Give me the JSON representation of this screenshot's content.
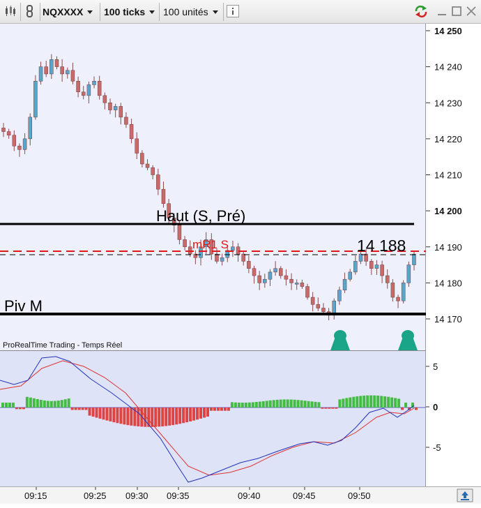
{
  "toolbar": {
    "symbol": "NQXXXX",
    "ticks": "100 ticks",
    "units": "100 unités"
  },
  "chart_data": [
    {
      "type": "candlestick",
      "price_axis_ticks": [
        "14 250",
        "14 240",
        "14 230",
        "14 220",
        "14 210",
        "14 200",
        "14 190",
        "14 180",
        "14 170"
      ],
      "time_axis_ticks": [
        "09:15",
        "09:25",
        "09:30",
        "09:35",
        "09:40",
        "09:45",
        "09:50"
      ],
      "ylim": [
        14163,
        14250
      ],
      "closes": [
        14222,
        14221,
        14218,
        14217,
        14220,
        14226,
        14236,
        14240,
        14238,
        14242,
        14240,
        14238,
        14239,
        14236,
        14233,
        14232,
        14235,
        14236,
        14232,
        14230,
        14228,
        14229,
        14226,
        14224,
        14220,
        14216,
        14213,
        14212,
        14210,
        14206,
        14202,
        14198,
        14196,
        14192,
        14190,
        14188,
        14187,
        14190,
        14192,
        14188,
        14186,
        14187,
        14189,
        14190,
        14188,
        14186,
        14184,
        14182,
        14180,
        14181,
        14183,
        14184,
        14182,
        14181,
        14180,
        14180,
        14179,
        14176,
        14174,
        14173,
        14172,
        14171,
        14175,
        14178,
        14181,
        14183,
        14186,
        14188,
        14186,
        14184,
        14185,
        14182,
        14180,
        14176,
        14175,
        14180,
        14185,
        14188
      ],
      "colors": {
        "up": "#5aa5cc",
        "down": "#c96a6a"
      },
      "levels": [
        {
          "label": "Haut (S, Pré)",
          "value": 14196
        },
        {
          "label": "Piv M",
          "value": 14171
        },
        {
          "label": "mR1 S",
          "value": 14188.5
        }
      ],
      "last_price_label": "14 188",
      "signals": 2
    },
    {
      "type": "macd",
      "title": "ProRealTime Trading - Temps Réel",
      "yticks": [
        "5",
        "0",
        "-5"
      ],
      "ylim": [
        -9.5,
        6.5
      ],
      "histogram_colors": {
        "positive": "#44bb44",
        "negative": "#dd4444"
      },
      "line_colors": {
        "macd": "#2233bb",
        "signal": "#dd3333"
      }
    }
  ]
}
